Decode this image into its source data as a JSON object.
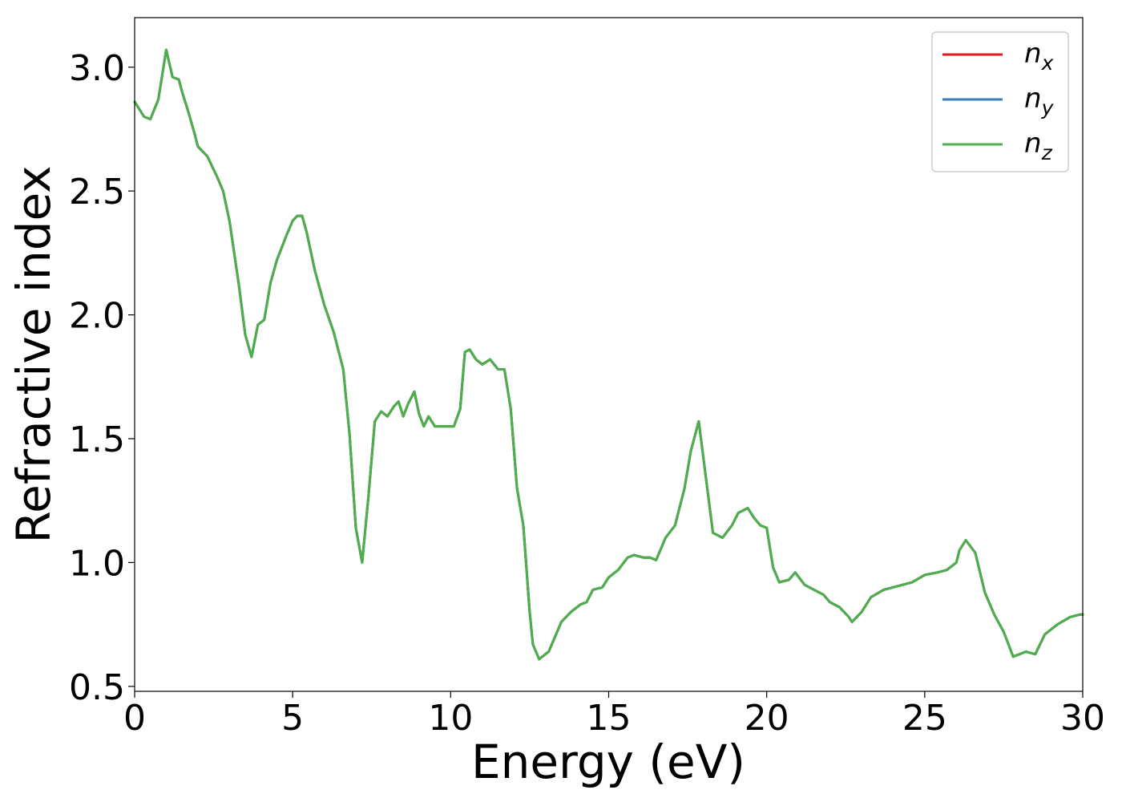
{
  "chart_data": {
    "type": "line",
    "xlabel": "Energy (eV)",
    "ylabel": "Refractive index",
    "xlim": [
      0,
      30
    ],
    "ylim": [
      0.48,
      3.2
    ],
    "xticks": [
      "0",
      "5",
      "10",
      "15",
      "20",
      "25",
      "30"
    ],
    "yticks": [
      "0.5",
      "1.0",
      "1.5",
      "2.0",
      "2.5",
      "3.0"
    ],
    "grid": false,
    "legend_position": "top-right",
    "x": [
      0,
      0.3,
      0.5,
      0.75,
      1.0,
      1.2,
      1.4,
      1.5,
      1.7,
      1.9,
      2.0,
      2.3,
      2.6,
      2.8,
      3.0,
      3.3,
      3.5,
      3.7,
      3.9,
      4.1,
      4.3,
      4.5,
      4.8,
      5.0,
      5.15,
      5.3,
      5.45,
      5.7,
      6.0,
      6.3,
      6.6,
      6.8,
      7.0,
      7.2,
      7.4,
      7.6,
      7.8,
      8.0,
      8.2,
      8.35,
      8.5,
      8.65,
      8.85,
      9.0,
      9.15,
      9.3,
      9.5,
      9.8,
      10.1,
      10.3,
      10.45,
      10.6,
      10.8,
      11.0,
      11.25,
      11.5,
      11.7,
      11.9,
      12.1,
      12.3,
      12.5,
      12.6,
      12.8,
      13.1,
      13.3,
      13.5,
      13.8,
      14.1,
      14.3,
      14.5,
      14.8,
      15.0,
      15.3,
      15.6,
      15.8,
      16.1,
      16.3,
      16.5,
      16.8,
      17.1,
      17.4,
      17.6,
      17.85,
      18.1,
      18.3,
      18.6,
      18.9,
      19.1,
      19.4,
      19.6,
      19.8,
      20.0,
      20.2,
      20.4,
      20.7,
      20.9,
      21.2,
      21.5,
      21.8,
      22.0,
      22.3,
      22.6,
      22.7,
      23.0,
      23.3,
      23.7,
      24.0,
      24.3,
      24.6,
      25.0,
      25.4,
      25.7,
      26.0,
      26.1,
      26.3,
      26.6,
      26.9,
      27.2,
      27.5,
      27.8,
      28.0,
      28.2,
      28.5,
      28.8,
      29.2,
      29.6,
      29.9,
      30.0
    ],
    "series": [
      {
        "name": "x",
        "color": "#e41a1c",
        "values": [
          2.86,
          2.8,
          2.79,
          2.87,
          3.07,
          2.96,
          2.95,
          2.9,
          2.82,
          2.73,
          2.68,
          2.64,
          2.56,
          2.5,
          2.38,
          2.12,
          1.92,
          1.83,
          1.96,
          1.98,
          2.13,
          2.22,
          2.32,
          2.38,
          2.4,
          2.4,
          2.33,
          2.18,
          2.04,
          1.93,
          1.78,
          1.52,
          1.14,
          1.0,
          1.27,
          1.57,
          1.61,
          1.59,
          1.63,
          1.65,
          1.59,
          1.64,
          1.69,
          1.6,
          1.55,
          1.59,
          1.55,
          1.55,
          1.55,
          1.62,
          1.85,
          1.86,
          1.82,
          1.8,
          1.82,
          1.78,
          1.78,
          1.62,
          1.3,
          1.15,
          0.8,
          0.67,
          0.61,
          0.64,
          0.7,
          0.76,
          0.8,
          0.83,
          0.84,
          0.89,
          0.9,
          0.94,
          0.97,
          1.02,
          1.03,
          1.02,
          1.02,
          1.01,
          1.1,
          1.15,
          1.3,
          1.45,
          1.57,
          1.32,
          1.12,
          1.1,
          1.15,
          1.2,
          1.22,
          1.18,
          1.15,
          1.14,
          0.98,
          0.92,
          0.93,
          0.96,
          0.91,
          0.89,
          0.87,
          0.84,
          0.82,
          0.78,
          0.76,
          0.8,
          0.86,
          0.89,
          0.9,
          0.91,
          0.92,
          0.95,
          0.96,
          0.97,
          1.0,
          1.05,
          1.09,
          1.04,
          0.88,
          0.79,
          0.72,
          0.62,
          0.63,
          0.64,
          0.63,
          0.71,
          0.75,
          0.78,
          0.79,
          0.79
        ]
      },
      {
        "name": "y",
        "color": "#377eb8",
        "values": [
          2.86,
          2.8,
          2.79,
          2.87,
          3.07,
          2.96,
          2.95,
          2.9,
          2.82,
          2.73,
          2.68,
          2.64,
          2.56,
          2.5,
          2.38,
          2.12,
          1.92,
          1.83,
          1.96,
          1.98,
          2.13,
          2.22,
          2.32,
          2.38,
          2.4,
          2.4,
          2.33,
          2.18,
          2.04,
          1.93,
          1.78,
          1.52,
          1.14,
          1.0,
          1.27,
          1.57,
          1.61,
          1.59,
          1.63,
          1.65,
          1.59,
          1.64,
          1.69,
          1.6,
          1.55,
          1.59,
          1.55,
          1.55,
          1.55,
          1.62,
          1.85,
          1.86,
          1.82,
          1.8,
          1.82,
          1.78,
          1.78,
          1.62,
          1.3,
          1.15,
          0.8,
          0.67,
          0.61,
          0.64,
          0.7,
          0.76,
          0.8,
          0.83,
          0.84,
          0.89,
          0.9,
          0.94,
          0.97,
          1.02,
          1.03,
          1.02,
          1.02,
          1.01,
          1.1,
          1.15,
          1.3,
          1.45,
          1.57,
          1.32,
          1.12,
          1.1,
          1.15,
          1.2,
          1.22,
          1.18,
          1.15,
          1.14,
          0.98,
          0.92,
          0.93,
          0.96,
          0.91,
          0.89,
          0.87,
          0.84,
          0.82,
          0.78,
          0.76,
          0.8,
          0.86,
          0.89,
          0.9,
          0.91,
          0.92,
          0.95,
          0.96,
          0.97,
          1.0,
          1.05,
          1.09,
          1.04,
          0.88,
          0.79,
          0.72,
          0.62,
          0.63,
          0.64,
          0.63,
          0.71,
          0.75,
          0.78,
          0.79,
          0.79
        ]
      },
      {
        "name": "z",
        "color": "#4daf4a",
        "values": [
          2.86,
          2.8,
          2.79,
          2.87,
          3.07,
          2.96,
          2.95,
          2.9,
          2.82,
          2.73,
          2.68,
          2.64,
          2.56,
          2.5,
          2.38,
          2.12,
          1.92,
          1.83,
          1.96,
          1.98,
          2.13,
          2.22,
          2.32,
          2.38,
          2.4,
          2.4,
          2.33,
          2.18,
          2.04,
          1.93,
          1.78,
          1.52,
          1.14,
          1.0,
          1.27,
          1.57,
          1.61,
          1.59,
          1.63,
          1.65,
          1.59,
          1.64,
          1.69,
          1.6,
          1.55,
          1.59,
          1.55,
          1.55,
          1.55,
          1.62,
          1.85,
          1.86,
          1.82,
          1.8,
          1.82,
          1.78,
          1.78,
          1.62,
          1.3,
          1.15,
          0.8,
          0.67,
          0.61,
          0.64,
          0.7,
          0.76,
          0.8,
          0.83,
          0.84,
          0.89,
          0.9,
          0.94,
          0.97,
          1.02,
          1.03,
          1.02,
          1.02,
          1.01,
          1.1,
          1.15,
          1.3,
          1.45,
          1.57,
          1.32,
          1.12,
          1.1,
          1.15,
          1.2,
          1.22,
          1.18,
          1.15,
          1.14,
          0.98,
          0.92,
          0.93,
          0.96,
          0.91,
          0.89,
          0.87,
          0.84,
          0.82,
          0.78,
          0.76,
          0.8,
          0.86,
          0.89,
          0.9,
          0.91,
          0.92,
          0.95,
          0.96,
          0.97,
          1.0,
          1.05,
          1.09,
          1.04,
          0.88,
          0.79,
          0.72,
          0.62,
          0.63,
          0.64,
          0.63,
          0.71,
          0.75,
          0.78,
          0.79,
          0.79
        ]
      }
    ],
    "legend": [
      {
        "base": "n",
        "sub": "x"
      },
      {
        "base": "n",
        "sub": "y"
      },
      {
        "base": "n",
        "sub": "z"
      }
    ]
  }
}
